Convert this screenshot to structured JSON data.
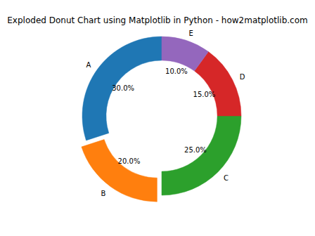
{
  "chart_data": {
    "type": "pie",
    "title": "Exploded Donut Chart using Matplotlib in Python - how2matplotlib.com",
    "categories": [
      "A",
      "B",
      "C",
      "D",
      "E"
    ],
    "values": [
      30,
      20,
      25,
      15,
      10
    ],
    "value_labels": [
      "30.0%",
      "20.0%",
      "25.0%",
      "15.0%",
      "10.0%"
    ],
    "colors": [
      "#1f77b4",
      "#ff7f0e",
      "#2ca02c",
      "#d62728",
      "#9467bd"
    ],
    "data_labels": true
  }
}
